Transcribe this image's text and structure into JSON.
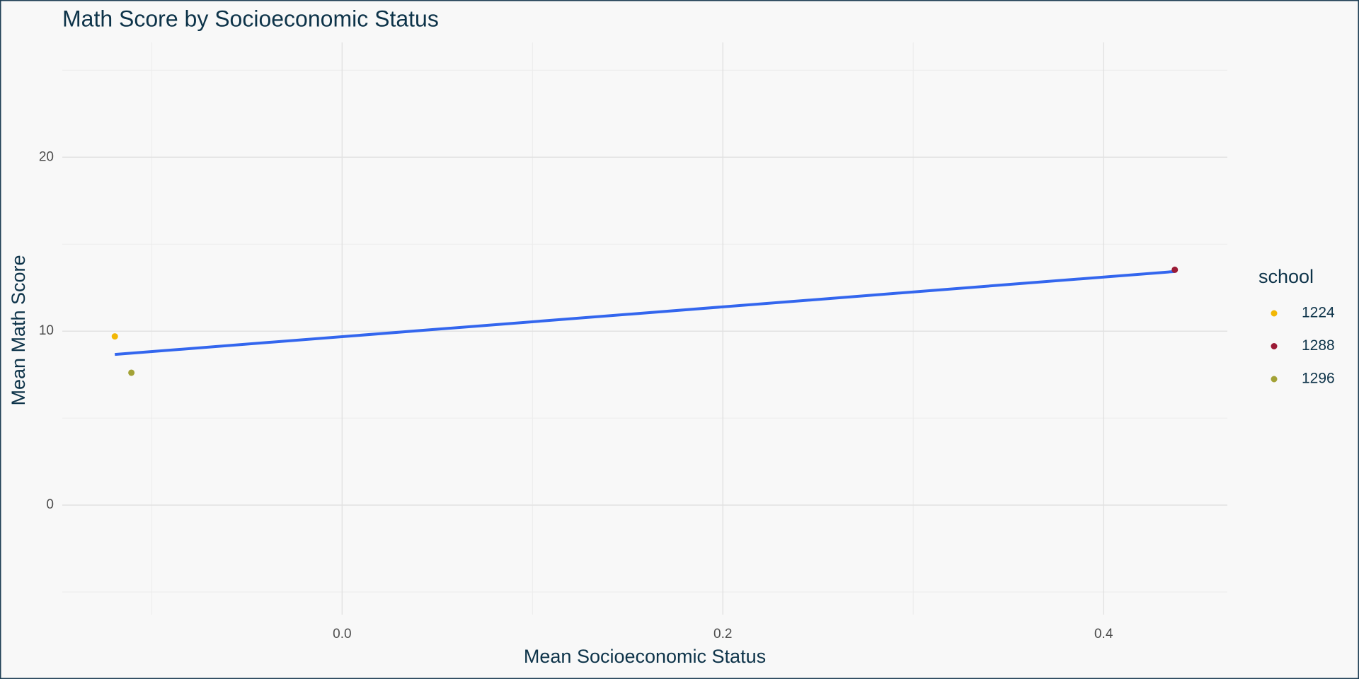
{
  "chart_data": {
    "type": "scatter",
    "title": "Math Score by Socioeconomic Status",
    "x_label": "Mean Socioeconomic Status",
    "y_label": "Mean Math Score",
    "legend_title": "school",
    "legend": "right",
    "grid": true,
    "xlim": [
      -0.147,
      0.465
    ],
    "ylim": [
      -6.3,
      26.6
    ],
    "xticks": [
      {
        "value": 0,
        "label": "0.0"
      },
      0.2,
      0.4
    ],
    "yticks": [
      0,
      10,
      20
    ],
    "x_minor_ticks": [
      -0.1,
      0.1,
      0.3
    ],
    "y_minor_ticks": [
      -5,
      5,
      15,
      25
    ],
    "series": [
      {
        "name": "1224",
        "color": "#f2b705",
        "x": [
          -0.1194
        ],
        "values": [
          9.7
        ]
      },
      {
        "name": "1288",
        "color": "#9b1b36",
        "x": [
          0.4374
        ],
        "values": [
          13.53
        ]
      },
      {
        "name": "1296",
        "color": "#a3a236",
        "x": [
          -0.1107
        ],
        "values": [
          7.61
        ]
      }
    ],
    "trend_line": {
      "color": "#3366ee",
      "x": [
        -0.1194,
        0.4374
      ],
      "values": [
        8.66,
        13.43
      ]
    }
  }
}
